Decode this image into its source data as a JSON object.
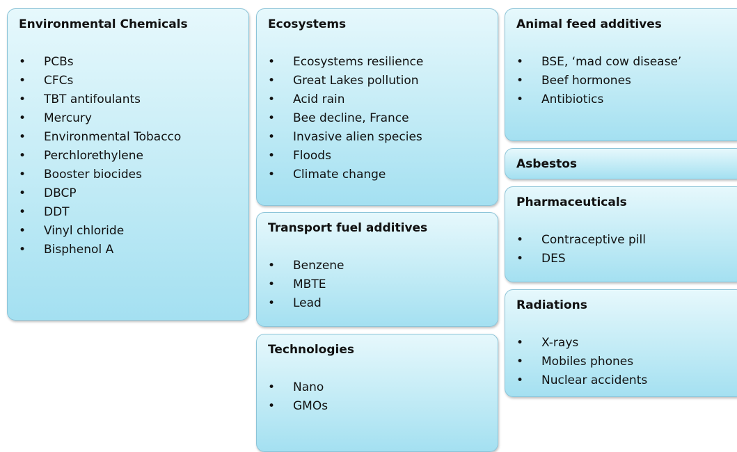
{
  "boxes": [
    {
      "title": "Environmental Chemicals",
      "items": [
        "PCBs",
        "CFCs",
        "TBT antifoulants",
        "Mercury",
        "Environmental Tobacco",
        "Perchlorethylene",
        "Booster biocides",
        "DBCP",
        "DDT",
        "Vinyl chloride",
        "Bisphenol A"
      ]
    },
    {
      "title": "Ecosystems",
      "items": [
        "Ecosystems resilience",
        "Great Lakes pollution",
        "Acid rain",
        "Bee decline, France",
        "Invasive alien species",
        "Floods",
        "Climate change"
      ]
    },
    {
      "title": "Transport fuel additives",
      "items": [
        "Benzene",
        "MBTE",
        "Lead"
      ]
    },
    {
      "title": "Technologies",
      "items": [
        "Nano",
        "GMOs"
      ]
    },
    {
      "title": "Animal feed additives",
      "items": [
        "BSE, ‘mad cow disease’",
        "Beef hormones",
        "Antibiotics"
      ]
    },
    {
      "title": "Asbestos",
      "items": []
    },
    {
      "title": "Pharmaceuticals",
      "items": [
        "Contraceptive pill",
        "DES"
      ]
    },
    {
      "title": "Radiations",
      "items": [
        "X-rays",
        "Mobiles phones",
        "Nuclear accidents"
      ]
    }
  ]
}
